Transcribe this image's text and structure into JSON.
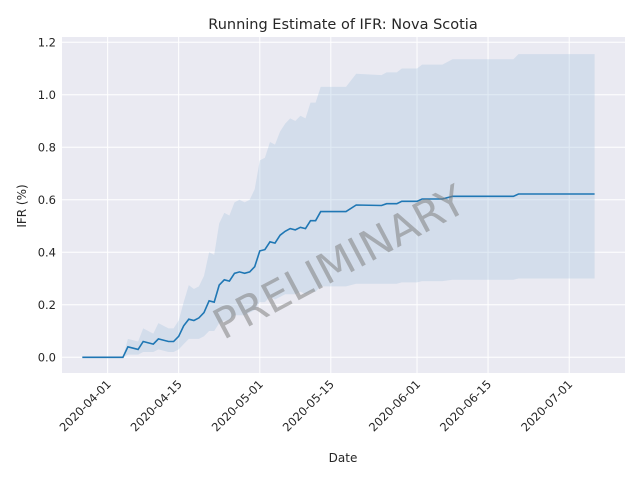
{
  "chart_data": {
    "type": "line",
    "title": "Running Estimate of IFR: Nova Scotia",
    "xlabel": "Date",
    "ylabel": "IFR (%)",
    "watermark": "PRELIMINARY",
    "x_range": [
      "2020-03-23",
      "2020-07-12"
    ],
    "ylim": [
      -0.06,
      1.22
    ],
    "grid": true,
    "legend": "none",
    "colors": {
      "line": "#1f77b4",
      "band": "#aac6e0",
      "background": "#eaeaf2",
      "grid": "#ffffff",
      "watermark": "#808080"
    },
    "x_ticks": [
      {
        "date": "2020-04-01",
        "label": "2020-04-01"
      },
      {
        "date": "2020-04-15",
        "label": "2020-04-15"
      },
      {
        "date": "2020-05-01",
        "label": "2020-05-01"
      },
      {
        "date": "2020-05-15",
        "label": "2020-05-15"
      },
      {
        "date": "2020-06-01",
        "label": "2020-06-01"
      },
      {
        "date": "2020-06-15",
        "label": "2020-06-15"
      },
      {
        "date": "2020-07-01",
        "label": "2020-07-01"
      }
    ],
    "y_ticks": [
      {
        "value": 0.0,
        "label": "0.0"
      },
      {
        "value": 0.2,
        "label": "0.2"
      },
      {
        "value": 0.4,
        "label": "0.4"
      },
      {
        "value": 0.6,
        "label": "0.6"
      },
      {
        "value": 0.8,
        "label": "0.8"
      },
      {
        "value": 1.0,
        "label": "1.0"
      },
      {
        "value": 1.2,
        "label": "1.2"
      }
    ],
    "series": [
      {
        "x": [
          "2020-03-27",
          "2020-04-04",
          "2020-04-05",
          "2020-04-07",
          "2020-04-08",
          "2020-04-10",
          "2020-04-11",
          "2020-04-13",
          "2020-04-14",
          "2020-04-15",
          "2020-04-16",
          "2020-04-17",
          "2020-04-18",
          "2020-04-19",
          "2020-04-20",
          "2020-04-21",
          "2020-04-22",
          "2020-04-23",
          "2020-04-24",
          "2020-04-25",
          "2020-04-26",
          "2020-04-27",
          "2020-04-28",
          "2020-04-29",
          "2020-04-30",
          "2020-05-01",
          "2020-05-02",
          "2020-05-03",
          "2020-05-04",
          "2020-05-05",
          "2020-05-06",
          "2020-05-07",
          "2020-05-08",
          "2020-05-09",
          "2020-05-10",
          "2020-05-11",
          "2020-05-12",
          "2020-05-13",
          "2020-05-14",
          "2020-05-15",
          "2020-05-18",
          "2020-05-20",
          "2020-05-25",
          "2020-05-26",
          "2020-05-28",
          "2020-05-29",
          "2020-06-01",
          "2020-06-02",
          "2020-06-06",
          "2020-06-08",
          "2020-06-20",
          "2020-06-21",
          "2020-07-06"
        ],
        "y": [
          0.0,
          0.0,
          0.04,
          0.03,
          0.06,
          0.05,
          0.07,
          0.06,
          0.06,
          0.08,
          0.12,
          0.145,
          0.14,
          0.15,
          0.17,
          0.215,
          0.21,
          0.275,
          0.295,
          0.29,
          0.32,
          0.325,
          0.32,
          0.325,
          0.345,
          0.405,
          0.41,
          0.44,
          0.435,
          0.465,
          0.48,
          0.49,
          0.485,
          0.495,
          0.49,
          0.52,
          0.52,
          0.555,
          0.555,
          0.555,
          0.555,
          0.58,
          0.578,
          0.585,
          0.585,
          0.594,
          0.594,
          0.603,
          0.603,
          0.613,
          0.613,
          0.622,
          0.622
        ],
        "lower": [
          0.0,
          0.0,
          0.01,
          0.01,
          0.02,
          0.02,
          0.03,
          0.02,
          0.02,
          0.03,
          0.05,
          0.07,
          0.07,
          0.07,
          0.08,
          0.1,
          0.1,
          0.13,
          0.14,
          0.14,
          0.16,
          0.16,
          0.16,
          0.17,
          0.18,
          0.21,
          0.21,
          0.23,
          0.22,
          0.23,
          0.24,
          0.24,
          0.24,
          0.25,
          0.24,
          0.25,
          0.25,
          0.27,
          0.27,
          0.27,
          0.27,
          0.28,
          0.28,
          0.28,
          0.28,
          0.285,
          0.285,
          0.29,
          0.29,
          0.295,
          0.295,
          0.3,
          0.3
        ],
        "upper": [
          0.0,
          0.0,
          0.07,
          0.06,
          0.11,
          0.09,
          0.13,
          0.11,
          0.11,
          0.14,
          0.21,
          0.275,
          0.26,
          0.27,
          0.31,
          0.4,
          0.39,
          0.51,
          0.55,
          0.54,
          0.59,
          0.6,
          0.59,
          0.6,
          0.64,
          0.75,
          0.76,
          0.82,
          0.81,
          0.86,
          0.89,
          0.91,
          0.9,
          0.92,
          0.91,
          0.97,
          0.97,
          1.03,
          1.03,
          1.03,
          1.03,
          1.08,
          1.075,
          1.085,
          1.085,
          1.1,
          1.1,
          1.115,
          1.115,
          1.135,
          1.135,
          1.155,
          1.155
        ]
      }
    ]
  }
}
